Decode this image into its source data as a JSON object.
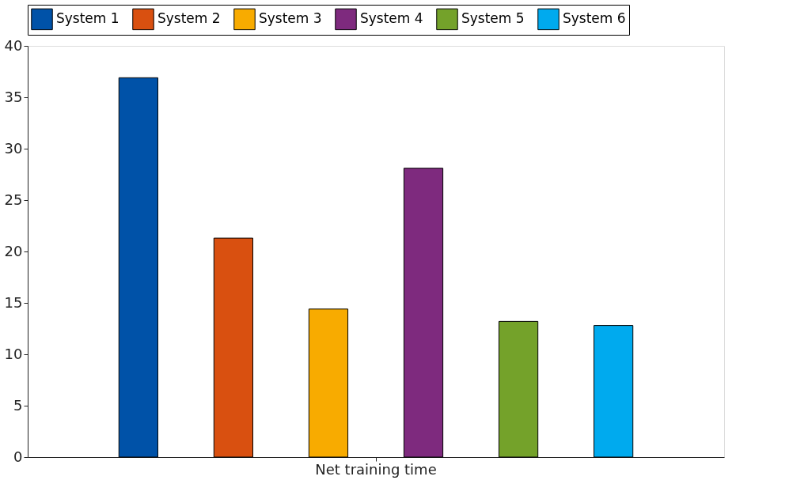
{
  "chart_data": {
    "type": "bar",
    "categories": [
      "Net training time"
    ],
    "series": [
      {
        "name": "System 1",
        "color": "#0052a8",
        "values": [
          36.9
        ]
      },
      {
        "name": "System 2",
        "color": "#d95010",
        "values": [
          21.3
        ]
      },
      {
        "name": "System 3",
        "color": "#f8ab00",
        "values": [
          14.4
        ]
      },
      {
        "name": "System 4",
        "color": "#7e2a7e",
        "values": [
          28.1
        ]
      },
      {
        "name": "System 5",
        "color": "#74a22a",
        "values": [
          13.2
        ]
      },
      {
        "name": "System 6",
        "color": "#00aaee",
        "values": [
          12.8
        ]
      }
    ],
    "ylim": [
      0,
      40
    ],
    "yticks": [
      0,
      5,
      10,
      15,
      20,
      25,
      30,
      35,
      40
    ],
    "grid": false,
    "legend": "top"
  }
}
